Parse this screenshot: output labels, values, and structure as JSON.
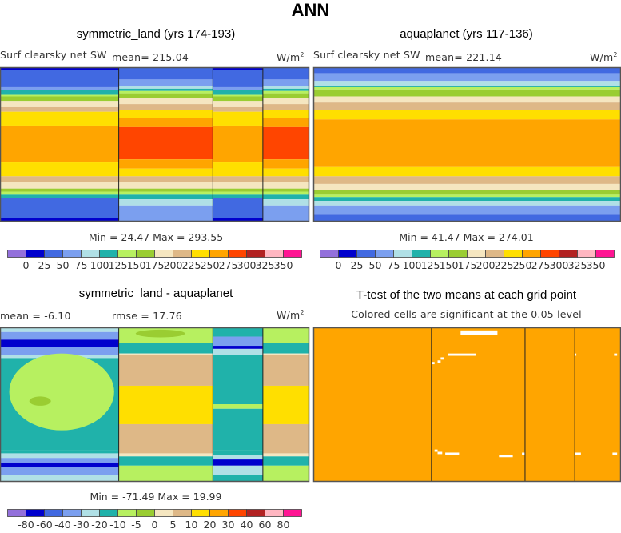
{
  "figure_title": "ANN",
  "colors": {
    "levels16": [
      "#9370DB",
      "#0000CD",
      "#4169E1",
      "#7B9FEF",
      "#B0E0E6",
      "#20B2AA",
      "#B7F060",
      "#9ACD32",
      "#F5E6C0",
      "#DEB887",
      "#FFDF00",
      "#FFA500",
      "#FF4500",
      "#B22222",
      "#FFB6C1",
      "#FF1493"
    ],
    "frame": "#555555",
    "land_outline": "#222222",
    "significant": "#FFA500",
    "not_significant": "#FFFFFF"
  },
  "chart_data": [
    {
      "type": "heatmap",
      "id": "symmetric_land",
      "title": "symmetric_land (yrs 174-193)",
      "variable": "Surf clearsky net SW",
      "mean_label": "mean= 215.04",
      "units": "W/m",
      "units_sup": "2",
      "min_max": "Min =  24.47 Max = 293.55",
      "colorbar": {
        "levels": [
          "0",
          "25",
          "50",
          "75",
          "100",
          "125",
          "150",
          "175",
          "200",
          "225",
          "250",
          "275",
          "300",
          "325",
          "350"
        ]
      },
      "regions": [
        {
          "lon": [
            0.0,
            0.385
          ],
          "kind": "ocean"
        },
        {
          "lon": [
            0.385,
            0.69
          ],
          "kind": "land"
        },
        {
          "lon": [
            0.69,
            0.852
          ],
          "kind": "ocean"
        },
        {
          "lon": [
            0.852,
            1.0
          ],
          "kind": "land"
        }
      ],
      "profiles": {
        "ocean": [
          [
            0.0,
            1
          ],
          [
            0.02,
            2
          ],
          [
            0.13,
            3
          ],
          [
            0.15,
            5
          ],
          [
            0.18,
            6
          ],
          [
            0.19,
            7
          ],
          [
            0.22,
            8
          ],
          [
            0.26,
            9
          ],
          [
            0.29,
            10
          ],
          [
            0.38,
            11
          ],
          [
            0.62,
            10
          ],
          [
            0.71,
            9
          ],
          [
            0.75,
            8
          ],
          [
            0.79,
            7
          ],
          [
            0.81,
            6
          ],
          [
            0.83,
            5
          ],
          [
            0.85,
            2
          ],
          [
            0.98,
            1
          ]
        ],
        "land": [
          [
            0.0,
            2
          ],
          [
            0.08,
            3
          ],
          [
            0.12,
            4
          ],
          [
            0.14,
            5
          ],
          [
            0.155,
            6
          ],
          [
            0.17,
            7
          ],
          [
            0.2,
            8
          ],
          [
            0.24,
            9
          ],
          [
            0.28,
            10
          ],
          [
            0.33,
            11
          ],
          [
            0.39,
            12
          ],
          [
            0.6,
            11
          ],
          [
            0.66,
            10
          ],
          [
            0.71,
            9
          ],
          [
            0.75,
            8
          ],
          [
            0.79,
            7
          ],
          [
            0.81,
            6
          ],
          [
            0.83,
            5
          ],
          [
            0.86,
            4
          ],
          [
            0.9,
            3
          ],
          [
            1.0,
            3
          ]
        ]
      }
    },
    {
      "type": "heatmap",
      "id": "aquaplanet",
      "title": "aquaplanet (yrs 117-136)",
      "variable": "Surf clearsky net SW",
      "mean_label": "mean= 221.14",
      "units": "W/m",
      "units_sup": "2",
      "min_max": "Min =  41.47 Max = 274.01",
      "colorbar": {
        "levels": [
          "0",
          "25",
          "50",
          "75",
          "100",
          "125",
          "150",
          "175",
          "200",
          "225",
          "250",
          "275",
          "300",
          "325",
          "350"
        ]
      },
      "regions": [
        {
          "lon": [
            0.0,
            1.0
          ],
          "kind": "ocean"
        }
      ],
      "profiles": {
        "ocean": [
          [
            0.0,
            2
          ],
          [
            0.04,
            3
          ],
          [
            0.09,
            4
          ],
          [
            0.12,
            5
          ],
          [
            0.13,
            6
          ],
          [
            0.145,
            7
          ],
          [
            0.19,
            8
          ],
          [
            0.23,
            9
          ],
          [
            0.28,
            10
          ],
          [
            0.34,
            11
          ],
          [
            0.65,
            10
          ],
          [
            0.71,
            9
          ],
          [
            0.76,
            8
          ],
          [
            0.8,
            7
          ],
          [
            0.83,
            6
          ],
          [
            0.845,
            5
          ],
          [
            0.87,
            4
          ],
          [
            0.9,
            3
          ],
          [
            0.96,
            2
          ],
          [
            1.0,
            2
          ]
        ]
      }
    },
    {
      "type": "heatmap",
      "id": "difference",
      "title": "symmetric_land - aquaplanet",
      "mean_label": "mean =   -6.10",
      "rmse_label": "rmse =   17.76",
      "units": "W/m",
      "units_sup": "2",
      "min_max": "Min = -71.49 Max =   19.99",
      "colorbar": {
        "levels": [
          "-80",
          "-60",
          "-40",
          "-30",
          "-20",
          "-10",
          "-5",
          "0",
          "5",
          "10",
          "20",
          "30",
          "40",
          "60",
          "80"
        ]
      },
      "regions": [
        {
          "lon": [
            0.0,
            0.385
          ],
          "kind": "ocean"
        },
        {
          "lon": [
            0.385,
            0.69
          ],
          "kind": "land"
        },
        {
          "lon": [
            0.69,
            0.852
          ],
          "kind": "ocean2"
        },
        {
          "lon": [
            0.852,
            1.0
          ],
          "kind": "land2"
        }
      ],
      "profiles": {
        "ocean": [
          [
            0.0,
            4
          ],
          [
            0.03,
            3
          ],
          [
            0.08,
            1
          ],
          [
            0.13,
            3
          ],
          [
            0.18,
            4
          ],
          [
            0.2,
            5
          ],
          [
            0.8,
            5
          ],
          [
            0.82,
            4
          ],
          [
            0.85,
            3
          ],
          [
            0.88,
            1
          ],
          [
            0.91,
            3
          ],
          [
            0.96,
            4
          ],
          [
            1.0,
            4
          ]
        ],
        "land": [
          [
            0.0,
            6
          ],
          [
            0.1,
            5
          ],
          [
            0.17,
            8
          ],
          [
            0.18,
            9
          ],
          [
            0.38,
            10
          ],
          [
            0.63,
            9
          ],
          [
            0.82,
            8
          ],
          [
            0.84,
            5
          ],
          [
            0.9,
            6
          ],
          [
            1.0,
            6
          ]
        ],
        "ocean2": [
          [
            0.0,
            5
          ],
          [
            0.06,
            3
          ],
          [
            0.12,
            1
          ],
          [
            0.14,
            4
          ],
          [
            0.18,
            5
          ],
          [
            0.5,
            6
          ],
          [
            0.53,
            5
          ],
          [
            0.8,
            5
          ],
          [
            0.83,
            4
          ],
          [
            0.86,
            1
          ],
          [
            0.9,
            4
          ],
          [
            0.96,
            5
          ],
          [
            1.0,
            5
          ]
        ],
        "land2": [
          [
            0.0,
            6
          ],
          [
            0.1,
            5
          ],
          [
            0.17,
            8
          ],
          [
            0.18,
            9
          ],
          [
            0.38,
            10
          ],
          [
            0.63,
            9
          ],
          [
            0.82,
            8
          ],
          [
            0.84,
            5
          ],
          [
            0.9,
            6
          ],
          [
            1.0,
            6
          ]
        ]
      },
      "blobs": [
        {
          "cx": 0.2,
          "cy": 0.42,
          "rx": 0.17,
          "ry": 0.25,
          "level": 6
        },
        {
          "cx": 0.13,
          "cy": 0.48,
          "rx": 0.035,
          "ry": 0.03,
          "level": 7
        },
        {
          "cx": 0.52,
          "cy": 0.04,
          "rx": 0.08,
          "ry": 0.025,
          "level": 7
        }
      ]
    },
    {
      "type": "heatmap",
      "id": "ttest",
      "title": "T-test of the two means at each grid point",
      "subtitle": "Colored cells are significant at the 0.05 level",
      "significant_fraction_approx": 0.99,
      "regions": [
        {
          "lon": [
            0.0,
            0.385
          ]
        },
        {
          "lon": [
            0.385,
            0.69
          ]
        },
        {
          "lon": [
            0.69,
            0.852
          ]
        },
        {
          "lon": [
            0.852,
            1.0
          ]
        }
      ],
      "insignificant_cells": [
        [
          0.48,
          0.02,
          0.12,
          0.03
        ],
        [
          0.44,
          0.17,
          0.09,
          0.015
        ],
        [
          0.415,
          0.195,
          0.01,
          0.015
        ],
        [
          0.405,
          0.215,
          0.01,
          0.015
        ],
        [
          0.385,
          0.225,
          0.01,
          0.015
        ],
        [
          0.395,
          0.795,
          0.01,
          0.015
        ],
        [
          0.405,
          0.81,
          0.015,
          0.015
        ],
        [
          0.43,
          0.815,
          0.045,
          0.015
        ],
        [
          0.605,
          0.83,
          0.045,
          0.015
        ],
        [
          0.68,
          0.815,
          0.01,
          0.015
        ],
        [
          0.852,
          0.17,
          0.005,
          0.015
        ],
        [
          0.98,
          0.17,
          0.01,
          0.015
        ],
        [
          0.852,
          0.815,
          0.02,
          0.015
        ],
        [
          0.975,
          0.815,
          0.015,
          0.015
        ]
      ]
    }
  ]
}
